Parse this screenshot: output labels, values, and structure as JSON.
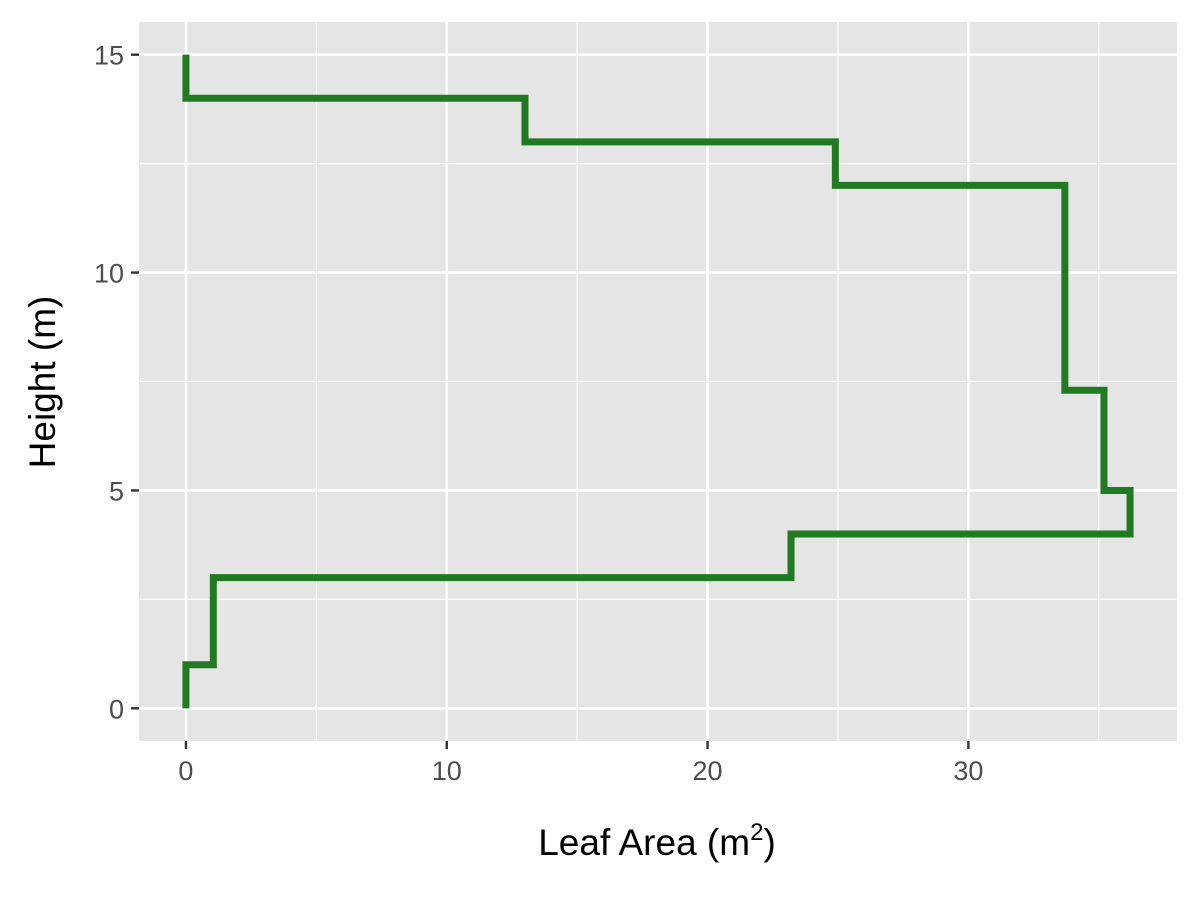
{
  "chart_data": {
    "type": "line",
    "step": true,
    "title": "",
    "xlabel": "Leaf Area (m",
    "xlabel_superscript": "2",
    "xlabel_suffix": ")",
    "ylabel": "Height (m)",
    "xlim": [
      -1.8,
      38.0
    ],
    "ylim": [
      -0.75,
      15.75
    ],
    "x_ticks": [
      0,
      10,
      20,
      30
    ],
    "x_tick_labels": [
      "0",
      "10",
      "20",
      "30"
    ],
    "y_ticks": [
      0,
      5,
      10,
      15
    ],
    "y_tick_labels": [
      "0",
      "5",
      "10",
      "15"
    ],
    "grid": true,
    "legend": "none",
    "series": [
      {
        "color": "#217a21",
        "points": [
          {
            "x": 0,
            "y": 0
          },
          {
            "x": 0,
            "y": 1
          },
          {
            "x": 1.05,
            "y": 1
          },
          {
            "x": 1.05,
            "y": 3
          },
          {
            "x": 23.2,
            "y": 3
          },
          {
            "x": 23.2,
            "y": 4
          },
          {
            "x": 36.2,
            "y": 4
          },
          {
            "x": 36.2,
            "y": 5
          },
          {
            "x": 35.2,
            "y": 5
          },
          {
            "x": 35.2,
            "y": 7.3
          },
          {
            "x": 33.7,
            "y": 7.3
          },
          {
            "x": 33.7,
            "y": 12
          },
          {
            "x": 24.9,
            "y": 12
          },
          {
            "x": 24.9,
            "y": 13
          },
          {
            "x": 13.0,
            "y": 13
          },
          {
            "x": 13.0,
            "y": 14
          },
          {
            "x": 0,
            "y": 14
          },
          {
            "x": 0,
            "y": 15
          }
        ]
      }
    ],
    "colors": {
      "panel_background": "#e5e5e5",
      "grid": "#ffffff",
      "tick": "#333333"
    }
  }
}
